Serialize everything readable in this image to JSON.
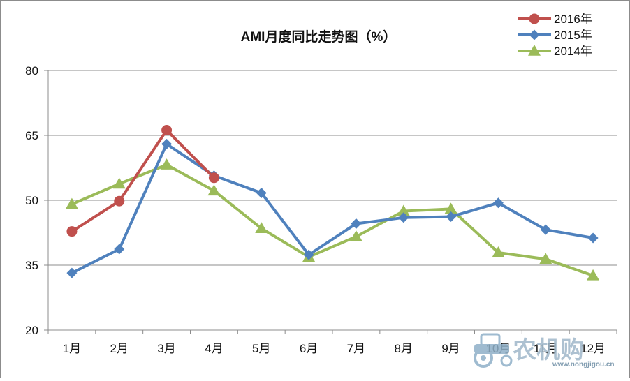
{
  "chart_data": {
    "type": "line",
    "title": "AMI月度同比走势图（%）",
    "categories": [
      "1月",
      "2月",
      "3月",
      "4月",
      "5月",
      "6月",
      "7月",
      "8月",
      "9月",
      "10月",
      "11月",
      "12月"
    ],
    "ylim": [
      20,
      80
    ],
    "yticks": [
      20,
      35,
      50,
      65,
      80
    ],
    "grid": true,
    "legend_position": "top-right",
    "series": [
      {
        "name": "2016年",
        "color": "#c0504d",
        "marker": "circle",
        "values": [
          42.8,
          49.8,
          66.2,
          55.2,
          null,
          null,
          null,
          null,
          null,
          null,
          null,
          null
        ]
      },
      {
        "name": "2015年",
        "color": "#4f81bd",
        "marker": "diamond",
        "values": [
          33.2,
          38.7,
          63.0,
          55.7,
          51.7,
          37.4,
          44.6,
          46.0,
          46.2,
          49.4,
          43.2,
          41.3
        ]
      },
      {
        "name": "2014年",
        "color": "#9bbb59",
        "marker": "triangle",
        "values": [
          49.1,
          53.8,
          58.2,
          52.2,
          43.5,
          36.9,
          41.6,
          47.5,
          48.0,
          37.9,
          36.4,
          32.6
        ]
      }
    ]
  },
  "watermark": {
    "text": "农机购",
    "url": "www.nongjigou.cn",
    "icon": "tractor-icon"
  }
}
